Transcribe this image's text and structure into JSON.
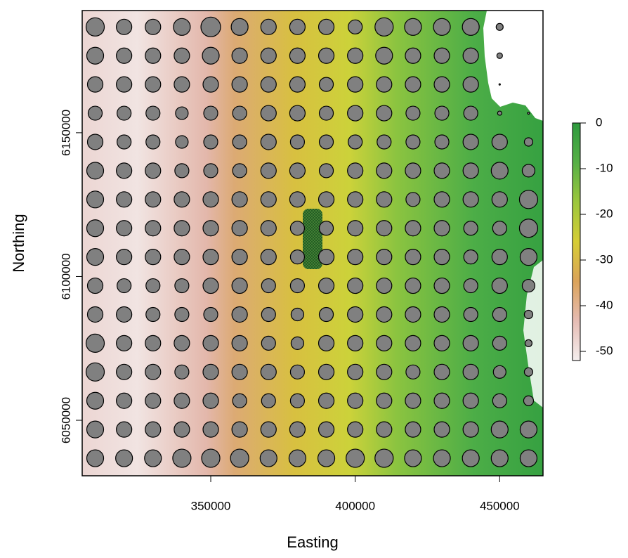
{
  "chart_data": {
    "type": "bubble-grid",
    "x_label": "Easting",
    "y_label": "Northing",
    "xlim": [
      305500,
      465000
    ],
    "ylim": [
      6030700,
      6192500
    ],
    "xticks": [
      350000,
      400000,
      450000
    ],
    "yticks": [
      6050000,
      6100000,
      6150000
    ],
    "bubble_color": "#808080",
    "x": [
      310000,
      320000,
      330000,
      340000,
      350000,
      360000,
      370000,
      380000,
      390000,
      400000,
      410000,
      420000,
      430000,
      440000,
      450000,
      460000
    ],
    "rows": [
      {
        "y": 6186800,
        "sizes": [
          13,
          11,
          11,
          12,
          14,
          12,
          11,
          11,
          11,
          10,
          13,
          12,
          12,
          12,
          5,
          null
        ]
      },
      {
        "y": 6176800,
        "sizes": [
          12,
          11,
          11,
          11,
          12,
          11,
          11,
          11,
          11,
          11,
          12,
          11,
          11,
          11,
          4,
          null
        ]
      },
      {
        "y": 6166800,
        "sizes": [
          11,
          11,
          11,
          11,
          11,
          11,
          11,
          11,
          10,
          11,
          11,
          11,
          11,
          11,
          1,
          null
        ]
      },
      {
        "y": 6156800,
        "sizes": [
          10,
          10,
          10,
          9,
          10,
          10,
          11,
          11,
          10,
          11,
          11,
          10,
          10,
          10,
          3,
          1.5
        ]
      },
      {
        "y": 6146800,
        "sizes": [
          11,
          10,
          10,
          9,
          10,
          10,
          11,
          10,
          10,
          10,
          10,
          10,
          10,
          11,
          11,
          6
        ]
      },
      {
        "y": 6136800,
        "sizes": [
          12,
          11,
          11,
          10,
          10,
          10,
          11,
          11,
          10,
          11,
          11,
          11,
          11,
          11,
          12,
          9
        ]
      },
      {
        "y": 6126800,
        "sizes": [
          12,
          11,
          11,
          11,
          11,
          11,
          11,
          11,
          11,
          11,
          11,
          10,
          11,
          11,
          11,
          13
        ]
      },
      {
        "y": 6116800,
        "sizes": [
          12,
          11,
          11,
          11,
          11,
          11,
          11,
          10,
          10,
          11,
          11,
          11,
          11,
          10,
          10,
          13
        ]
      },
      {
        "y": 6106800,
        "sizes": [
          12,
          11,
          11,
          11,
          11,
          11,
          11,
          10,
          11,
          11,
          11,
          11,
          11,
          10,
          11,
          12
        ]
      },
      {
        "y": 6096800,
        "sizes": [
          11,
          10,
          10,
          10,
          11,
          11,
          10,
          10,
          11,
          11,
          11,
          11,
          11,
          10,
          11,
          9
        ]
      },
      {
        "y": 6086800,
        "sizes": [
          11,
          11,
          10,
          10,
          10,
          11,
          10,
          9,
          10,
          11,
          11,
          11,
          11,
          10,
          10,
          6
        ]
      },
      {
        "y": 6076800,
        "sizes": [
          13,
          11,
          11,
          11,
          11,
          11,
          10,
          9,
          11,
          11,
          11,
          11,
          11,
          11,
          10,
          5
        ]
      },
      {
        "y": 6066800,
        "sizes": [
          13,
          11,
          11,
          10,
          11,
          11,
          11,
          10,
          11,
          11,
          11,
          10,
          11,
          11,
          9,
          6
        ]
      },
      {
        "y": 6056800,
        "sizes": [
          12,
          11,
          11,
          11,
          11,
          10,
          10,
          10,
          11,
          11,
          11,
          11,
          11,
          11,
          10,
          7
        ]
      },
      {
        "y": 6046800,
        "sizes": [
          12,
          11,
          11,
          11,
          11,
          11,
          11,
          11,
          11,
          11,
          11,
          11,
          11,
          11,
          12,
          12
        ]
      },
      {
        "y": 6036800,
        "sizes": [
          12,
          12,
          12,
          13,
          13,
          13,
          12,
          12,
          12,
          13,
          13,
          12,
          12,
          12,
          12,
          12
        ]
      }
    ],
    "colorbar": {
      "zlim": [
        -52,
        0
      ],
      "ticks": [
        0,
        -10,
        -20,
        -30,
        -40,
        -50
      ],
      "colors": [
        "#f4eeee",
        "#e6bcb4",
        "#dba35a",
        "#d6cd35",
        "#9cc73d",
        "#56b046",
        "#2e9a3e"
      ]
    }
  }
}
